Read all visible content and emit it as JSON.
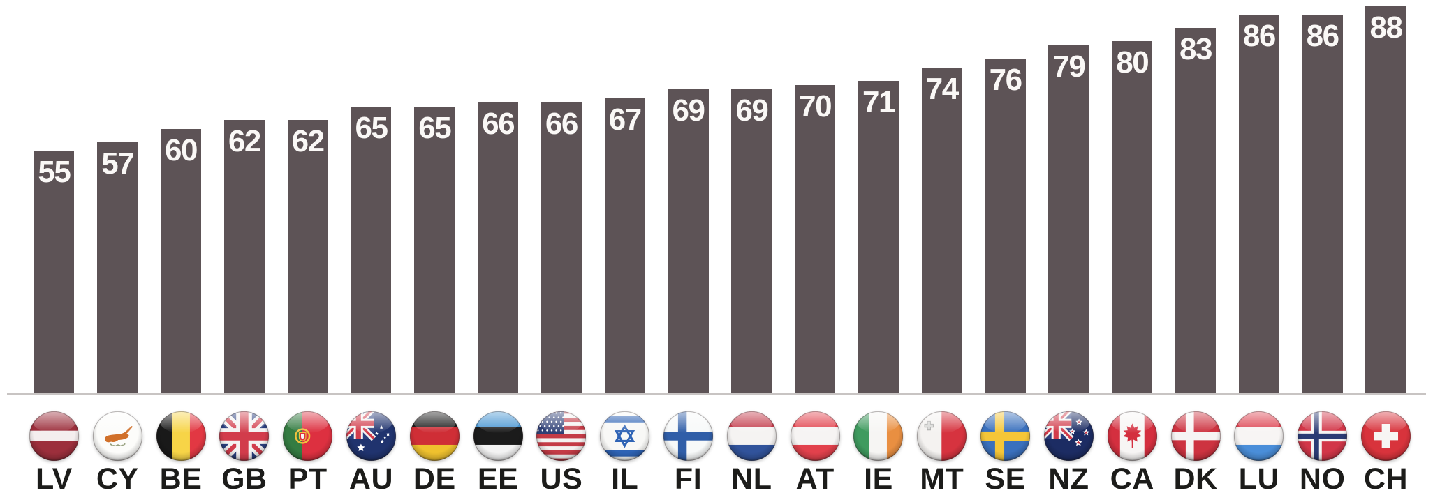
{
  "chart_data": {
    "type": "bar",
    "title": "",
    "xlabel": "",
    "ylabel": "",
    "categories": [
      "LV",
      "CY",
      "BE",
      "GB",
      "PT",
      "AU",
      "DE",
      "EE",
      "US",
      "IL",
      "FI",
      "NL",
      "AT",
      "IE",
      "MT",
      "SE",
      "NZ",
      "CA",
      "DK",
      "LU",
      "NO",
      "CH"
    ],
    "values": [
      55,
      57,
      60,
      62,
      62,
      65,
      65,
      66,
      66,
      67,
      69,
      69,
      70,
      71,
      74,
      76,
      79,
      80,
      83,
      86,
      86,
      88
    ],
    "ylim": [
      0,
      90
    ],
    "grid": false,
    "legend": "none",
    "value_labels_position": "inside-top",
    "bar_color": "#5d5356",
    "value_label_color": "#faf8f6",
    "axis_line_color": "#c8c4c3",
    "category_label_color": "#1c1c1a",
    "background_color": "#ffffff",
    "flag_icons": [
      "flag-lv-icon",
      "flag-cy-icon",
      "flag-be-icon",
      "flag-gb-icon",
      "flag-pt-icon",
      "flag-au-icon",
      "flag-de-icon",
      "flag-ee-icon",
      "flag-us-icon",
      "flag-il-icon",
      "flag-fi-icon",
      "flag-nl-icon",
      "flag-at-icon",
      "flag-ie-icon",
      "flag-mt-icon",
      "flag-se-icon",
      "flag-nz-icon",
      "flag-ca-icon",
      "flag-dk-icon",
      "flag-lu-icon",
      "flag-no-icon",
      "flag-ch-icon"
    ]
  }
}
